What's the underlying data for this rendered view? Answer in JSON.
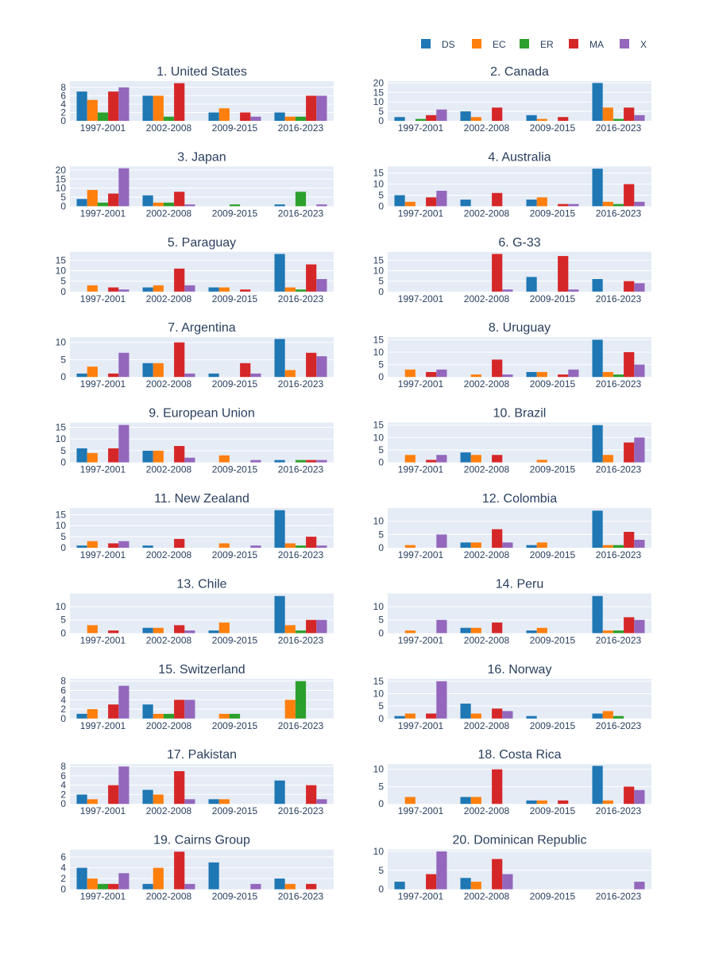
{
  "chart_data": {
    "type": "bar",
    "layout": "small-multiples",
    "grid": true,
    "legend_placement": "top-right",
    "categories": [
      "1997-2001",
      "2002-2008",
      "2009-2015",
      "2016-2023"
    ],
    "legend": [
      {
        "name": "DS",
        "color": "#1f77b4"
      },
      {
        "name": "EC",
        "color": "#ff7f0e"
      },
      {
        "name": "ER",
        "color": "#2ca02c"
      },
      {
        "name": "MA",
        "color": "#d62728"
      },
      {
        "name": "X",
        "color": "#9467bd"
      }
    ],
    "panels": [
      {
        "title": "1. United States",
        "y_ticks": [
          0,
          2,
          4,
          6,
          8
        ],
        "ylim": [
          0,
          9.5
        ],
        "values": {
          "DS": [
            7,
            6,
            2,
            2
          ],
          "EC": [
            5,
            6,
            3,
            1
          ],
          "ER": [
            2,
            1,
            0,
            1
          ],
          "MA": [
            7,
            9,
            2,
            6
          ],
          "X": [
            8,
            0,
            1,
            6
          ]
        }
      },
      {
        "title": "2. Canada",
        "y_ticks": [
          0,
          5,
          10,
          15,
          20
        ],
        "ylim": [
          0,
          21
        ],
        "values": {
          "DS": [
            2,
            5,
            3,
            20
          ],
          "EC": [
            0,
            2,
            1,
            7
          ],
          "ER": [
            1,
            0,
            0,
            1
          ],
          "MA": [
            3,
            7,
            2,
            7
          ],
          "X": [
            6,
            0,
            0,
            3
          ]
        }
      },
      {
        "title": "3. Japan",
        "y_ticks": [
          0,
          5,
          10,
          15,
          20
        ],
        "ylim": [
          0,
          22
        ],
        "values": {
          "DS": [
            4,
            6,
            0,
            1
          ],
          "EC": [
            9,
            2,
            0,
            0
          ],
          "ER": [
            2,
            2,
            1,
            8
          ],
          "MA": [
            7,
            8,
            0,
            0
          ],
          "X": [
            21,
            1,
            0,
            1
          ]
        }
      },
      {
        "title": "4. Australia",
        "y_ticks": [
          0,
          5,
          10,
          15
        ],
        "ylim": [
          0,
          18
        ],
        "values": {
          "DS": [
            5,
            3,
            3,
            17
          ],
          "EC": [
            2,
            0,
            4,
            2
          ],
          "ER": [
            0,
            0,
            0,
            1
          ],
          "MA": [
            4,
            6,
            1,
            10
          ],
          "X": [
            7,
            0,
            1,
            2
          ]
        }
      },
      {
        "title": "5. Paraguay",
        "y_ticks": [
          0,
          5,
          10,
          15
        ],
        "ylim": [
          0,
          19
        ],
        "values": {
          "DS": [
            0,
            2,
            2,
            18
          ],
          "EC": [
            3,
            3,
            2,
            2
          ],
          "ER": [
            0,
            0,
            0,
            1
          ],
          "MA": [
            2,
            11,
            1,
            13
          ],
          "X": [
            1,
            3,
            0,
            6
          ]
        }
      },
      {
        "title": "6. G-33",
        "y_ticks": [
          0,
          5,
          10,
          15
        ],
        "ylim": [
          0,
          19
        ],
        "values": {
          "DS": [
            0,
            0,
            7,
            6
          ],
          "EC": [
            0,
            0,
            0,
            0
          ],
          "ER": [
            0,
            0,
            0,
            0
          ],
          "MA": [
            0,
            18,
            17,
            5
          ],
          "X": [
            0,
            1,
            1,
            4
          ]
        }
      },
      {
        "title": "7. Argentina",
        "y_ticks": [
          0,
          5,
          10
        ],
        "ylim": [
          0,
          11.5
        ],
        "values": {
          "DS": [
            1,
            4,
            1,
            11
          ],
          "EC": [
            3,
            4,
            0,
            2
          ],
          "ER": [
            0,
            0,
            0,
            0
          ],
          "MA": [
            1,
            10,
            4,
            7
          ],
          "X": [
            7,
            1,
            1,
            6
          ]
        }
      },
      {
        "title": "8. Uruguay",
        "y_ticks": [
          0,
          5,
          10,
          15
        ],
        "ylim": [
          0,
          16
        ],
        "values": {
          "DS": [
            0,
            0,
            2,
            15
          ],
          "EC": [
            3,
            1,
            2,
            2
          ],
          "ER": [
            0,
            0,
            0,
            1
          ],
          "MA": [
            2,
            7,
            1,
            10
          ],
          "X": [
            3,
            1,
            3,
            5
          ]
        }
      },
      {
        "title": "9. European Union",
        "y_ticks": [
          0,
          5,
          10,
          15
        ],
        "ylim": [
          0,
          17
        ],
        "values": {
          "DS": [
            6,
            5,
            0,
            1
          ],
          "EC": [
            4,
            5,
            3,
            0
          ],
          "ER": [
            0,
            0,
            0,
            1
          ],
          "MA": [
            6,
            7,
            0,
            1
          ],
          "X": [
            16,
            2,
            1,
            1
          ]
        }
      },
      {
        "title": "10. Brazil",
        "y_ticks": [
          0,
          5,
          10,
          15
        ],
        "ylim": [
          0,
          16
        ],
        "values": {
          "DS": [
            0,
            4,
            0,
            15
          ],
          "EC": [
            3,
            3,
            1,
            3
          ],
          "ER": [
            0,
            0,
            0,
            0
          ],
          "MA": [
            1,
            3,
            0,
            8
          ],
          "X": [
            3,
            0,
            0,
            10
          ]
        }
      },
      {
        "title": "11. New Zealand",
        "y_ticks": [
          0,
          5,
          10,
          15
        ],
        "ylim": [
          0,
          18
        ],
        "values": {
          "DS": [
            1,
            1,
            0,
            17
          ],
          "EC": [
            3,
            0,
            2,
            2
          ],
          "ER": [
            0,
            0,
            0,
            1
          ],
          "MA": [
            2,
            4,
            0,
            5
          ],
          "X": [
            3,
            0,
            1,
            1
          ]
        }
      },
      {
        "title": "12. Colombia",
        "y_ticks": [
          0,
          5,
          10
        ],
        "ylim": [
          0,
          15
        ],
        "values": {
          "DS": [
            0,
            2,
            1,
            14
          ],
          "EC": [
            1,
            2,
            2,
            1
          ],
          "ER": [
            0,
            0,
            0,
            1
          ],
          "MA": [
            0,
            7,
            0,
            6
          ],
          "X": [
            5,
            2,
            0,
            3
          ]
        }
      },
      {
        "title": "13. Chile",
        "y_ticks": [
          0,
          5,
          10
        ],
        "ylim": [
          0,
          15
        ],
        "values": {
          "DS": [
            0,
            2,
            1,
            14
          ],
          "EC": [
            3,
            2,
            4,
            3
          ],
          "ER": [
            0,
            0,
            0,
            1
          ],
          "MA": [
            1,
            3,
            0,
            5
          ],
          "X": [
            0,
            1,
            0,
            5
          ]
        }
      },
      {
        "title": "14. Peru",
        "y_ticks": [
          0,
          5,
          10
        ],
        "ylim": [
          0,
          15
        ],
        "values": {
          "DS": [
            0,
            2,
            1,
            14
          ],
          "EC": [
            1,
            2,
            2,
            1
          ],
          "ER": [
            0,
            0,
            0,
            1
          ],
          "MA": [
            0,
            4,
            0,
            6
          ],
          "X": [
            5,
            0,
            0,
            5
          ]
        }
      },
      {
        "title": "15. Switzerland",
        "y_ticks": [
          0,
          2,
          4,
          6,
          8
        ],
        "ylim": [
          0,
          8.5
        ],
        "values": {
          "DS": [
            1,
            3,
            0,
            0
          ],
          "EC": [
            2,
            1,
            1,
            4
          ],
          "ER": [
            0,
            1,
            1,
            8
          ],
          "MA": [
            3,
            4,
            0,
            0
          ],
          "X": [
            7,
            4,
            0,
            0
          ]
        }
      },
      {
        "title": "16. Norway",
        "y_ticks": [
          0,
          5,
          10,
          15
        ],
        "ylim": [
          0,
          16
        ],
        "values": {
          "DS": [
            1,
            6,
            1,
            2
          ],
          "EC": [
            2,
            2,
            0,
            3
          ],
          "ER": [
            0,
            0,
            0,
            1
          ],
          "MA": [
            2,
            4,
            0,
            0
          ],
          "X": [
            15,
            3,
            0,
            0
          ]
        }
      },
      {
        "title": "17. Pakistan",
        "y_ticks": [
          0,
          2,
          4,
          6,
          8
        ],
        "ylim": [
          0,
          8.5
        ],
        "values": {
          "DS": [
            2,
            3,
            1,
            5
          ],
          "EC": [
            1,
            2,
            1,
            0
          ],
          "ER": [
            0,
            0,
            0,
            0
          ],
          "MA": [
            4,
            7,
            0,
            4
          ],
          "X": [
            8,
            1,
            0,
            1
          ]
        }
      },
      {
        "title": "18. Costa Rica",
        "y_ticks": [
          0,
          5,
          10
        ],
        "ylim": [
          0,
          11.5
        ],
        "values": {
          "DS": [
            0,
            2,
            1,
            11
          ],
          "EC": [
            2,
            2,
            1,
            1
          ],
          "ER": [
            0,
            0,
            0,
            0
          ],
          "MA": [
            0,
            10,
            1,
            5
          ],
          "X": [
            0,
            0,
            0,
            4
          ]
        }
      },
      {
        "title": "19. Cairns Group",
        "y_ticks": [
          0,
          2,
          4,
          6
        ],
        "ylim": [
          0,
          7.4
        ],
        "values": {
          "DS": [
            4,
            1,
            5,
            2
          ],
          "EC": [
            2,
            4,
            0,
            1
          ],
          "ER": [
            1,
            0,
            0,
            0
          ],
          "MA": [
            1,
            7,
            0,
            1
          ],
          "X": [
            3,
            1,
            1,
            0
          ]
        }
      },
      {
        "title": "20. Dominican Republic",
        "y_ticks": [
          0,
          5,
          10
        ],
        "ylim": [
          0,
          10.5
        ],
        "values": {
          "DS": [
            2,
            3,
            0,
            0
          ],
          "EC": [
            0,
            2,
            0,
            0
          ],
          "ER": [
            0,
            0,
            0,
            0
          ],
          "MA": [
            4,
            8,
            0,
            0
          ],
          "X": [
            10,
            4,
            0,
            2
          ]
        }
      }
    ]
  }
}
